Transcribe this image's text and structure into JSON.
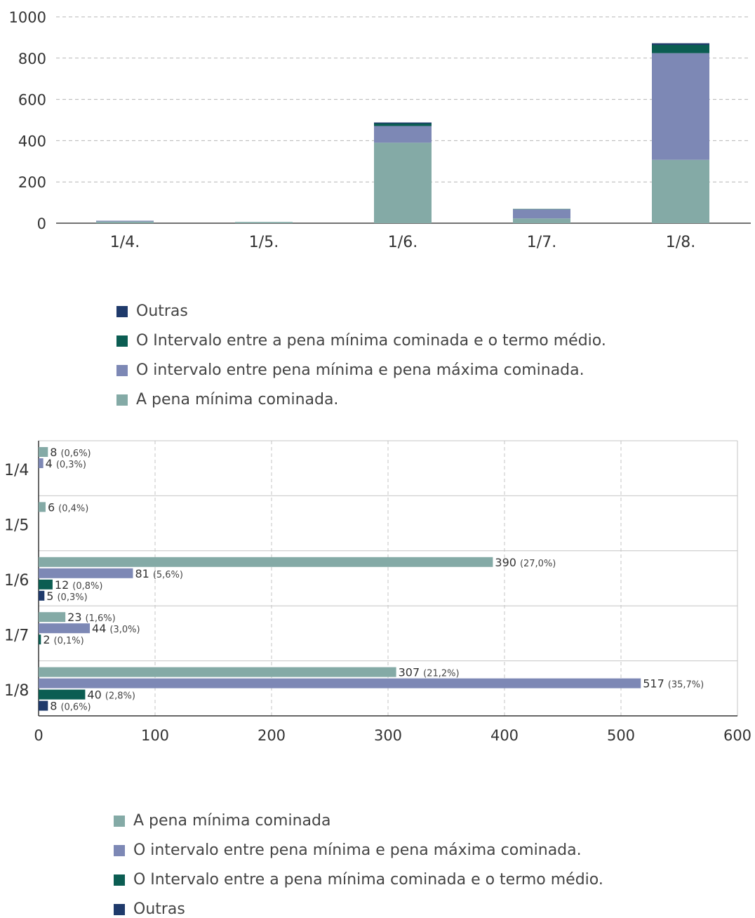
{
  "colors": {
    "outras": "#1f3a6b",
    "intervalo_termo": "#0b5d52",
    "intervalo_max": "#7d88b5",
    "pena_minima": "#84aaa6"
  },
  "chart_data": [
    {
      "type": "bar",
      "stacked": true,
      "categories": [
        "1/4.",
        "1/5.",
        "1/6.",
        "1/7.",
        "1/8."
      ],
      "ylim": [
        0,
        1000
      ],
      "yticks": [
        0,
        200,
        400,
        600,
        800,
        1000
      ],
      "grid": true,
      "legend_position": "bottom",
      "series": [
        {
          "name": "A pena mínima cominada.",
          "color_key": "pena_minima",
          "values": [
            8,
            6,
            390,
            23,
            307
          ]
        },
        {
          "name": "O intervalo entre pena mínima e pena máxima cominada.",
          "color_key": "intervalo_max",
          "values": [
            4,
            0,
            81,
            44,
            517
          ]
        },
        {
          "name": "O Intervalo entre a pena mínima cominada e o termo médio.",
          "color_key": "intervalo_termo",
          "values": [
            0,
            0,
            12,
            2,
            40
          ]
        },
        {
          "name": "Outras",
          "color_key": "outras",
          "values": [
            0,
            0,
            5,
            0,
            8
          ]
        }
      ],
      "legend_order": [
        "Outras",
        "O Intervalo entre a pena mínima cominada e o termo médio.",
        "O intervalo entre pena mínima e pena máxima cominada.",
        "A pena mínima cominada."
      ]
    },
    {
      "type": "bar",
      "orientation": "horizontal",
      "categories": [
        "1/4",
        "1/5",
        "1/6",
        "1/7",
        "1/8"
      ],
      "xlim": [
        0,
        600
      ],
      "xticks": [
        0,
        100,
        200,
        300,
        400,
        500,
        600
      ],
      "grid": true,
      "legend_position": "bottom",
      "series": [
        {
          "name": "A pena mínima cominada",
          "color_key": "pena_minima",
          "values": [
            8,
            6,
            390,
            23,
            307
          ],
          "pct_labels": [
            "(0,6%)",
            "(0,4%)",
            "(27,0%)",
            "(1,6%)",
            "(21,2%)"
          ]
        },
        {
          "name": "O intervalo entre pena mínima e pena máxima cominada.",
          "color_key": "intervalo_max",
          "values": [
            4,
            null,
            81,
            44,
            517
          ],
          "pct_labels": [
            "(0,3%)",
            null,
            "(5,6%)",
            "(3,0%)",
            "(35,7%)"
          ]
        },
        {
          "name": "O Intervalo entre a pena mínima cominada e o termo médio.",
          "color_key": "intervalo_termo",
          "values": [
            null,
            null,
            12,
            2,
            40
          ],
          "pct_labels": [
            null,
            null,
            "(0,8%)",
            "(0,1%)",
            "(2,8%)"
          ]
        },
        {
          "name": "Outras",
          "color_key": "outras",
          "values": [
            null,
            null,
            5,
            null,
            8
          ],
          "pct_labels": [
            null,
            null,
            "(0,3%)",
            null,
            "(0,6%)"
          ]
        }
      ]
    }
  ]
}
